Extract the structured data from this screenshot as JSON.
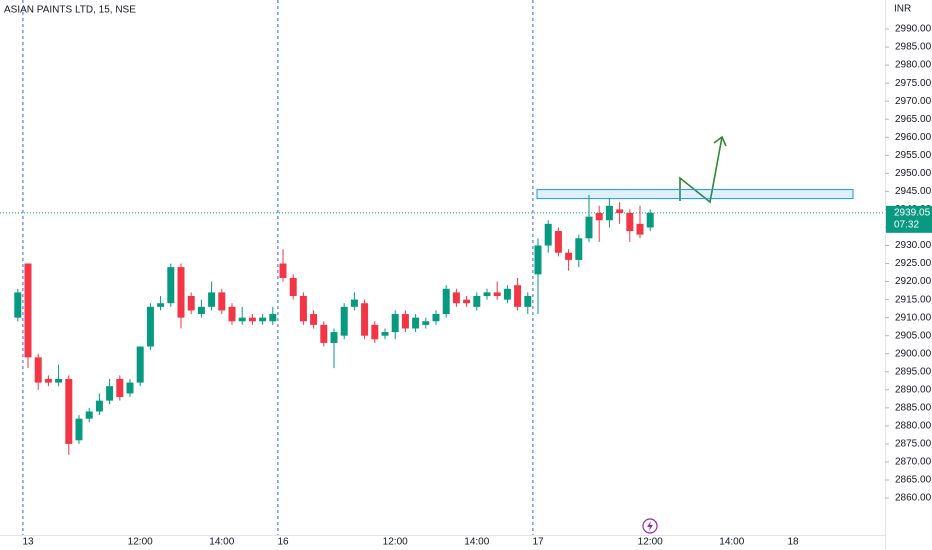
{
  "chart_data": {
    "type": "candlestick",
    "title": "ASIAN PAINTS LTD, 15, NSE",
    "currency": "INR",
    "categories": [
      null,
      "13",
      null,
      null,
      null,
      null,
      null,
      null,
      null,
      null,
      null,
      null,
      "12:00",
      null,
      null,
      null,
      null,
      null,
      null,
      null,
      "14:00",
      null,
      null,
      null,
      null,
      null,
      "16",
      null,
      null,
      null,
      null,
      null,
      null,
      null,
      null,
      null,
      null,
      "12:00",
      null,
      null,
      null,
      null,
      null,
      null,
      null,
      "14:00",
      null,
      null,
      null,
      null,
      null,
      "17",
      null,
      null,
      null,
      null,
      null,
      null,
      null,
      null,
      null,
      null,
      "12:00",
      null,
      null,
      null,
      null,
      null,
      null,
      null,
      "14:00",
      null,
      null,
      null,
      null,
      null,
      "18",
      null,
      null,
      null,
      null,
      null,
      null,
      null
    ],
    "open": [
      2910,
      2925,
      2899,
      2893,
      2892,
      2893,
      2876,
      2882,
      2884,
      2887,
      2893,
      2889,
      2892,
      2902,
      2913,
      2914,
      2924,
      2916,
      2911,
      2913,
      2917,
      2913,
      2909,
      2910,
      2909,
      2909,
      2925,
      2921,
      2916,
      2911,
      2908,
      2903,
      2905,
      2913,
      2914,
      2908,
      2905,
      2906,
      2911,
      2907,
      2908,
      2909,
      2911,
      2917,
      2915,
      2913,
      2916,
      2917,
      2915,
      2919,
      2913,
      2922,
      2930,
      2934,
      2928,
      2926,
      2932,
      2939,
      2937,
      2940,
      2939,
      2936,
      2935,
      null,
      null,
      null,
      null,
      null,
      null,
      null,
      null,
      null,
      null,
      null,
      null,
      null,
      null,
      null,
      null,
      null,
      null,
      null,
      null,
      null
    ],
    "high": [
      2918,
      2925,
      2900,
      2894,
      2897,
      2894,
      2883,
      2885,
      2889,
      2893,
      2894,
      2893,
      2902,
      2914,
      2916,
      2925,
      2925,
      2917,
      2915,
      2920,
      2918,
      2914,
      2913,
      2911,
      2911,
      2913,
      2929,
      2922,
      2917,
      2912,
      2909,
      2907,
      2914,
      2917,
      2915,
      2909,
      2907,
      2912,
      2912,
      2911,
      2910,
      2912,
      2919,
      2918,
      2916,
      2917,
      2918,
      2920,
      2919,
      2921,
      2917,
      2932,
      2937,
      2935,
      2929,
      2933,
      2944,
      2941,
      2943,
      2942,
      2940,
      2941,
      2940,
      null,
      null,
      null,
      null,
      null,
      null,
      null,
      null,
      null,
      null,
      null,
      null,
      null,
      null,
      null,
      null,
      null,
      null,
      null,
      null,
      null
    ],
    "low": [
      2909,
      2896,
      2890,
      2891,
      2891,
      2872,
      2875,
      2881,
      2883,
      2886,
      2887,
      2888,
      2891,
      2901,
      2912,
      2913,
      2907,
      2911,
      2910,
      2912,
      2911,
      2908,
      2908,
      2908,
      2908,
      2908,
      2920,
      2915,
      2908,
      2907,
      2902,
      2896,
      2904,
      2912,
      2904,
      2903,
      2904,
      2904,
      2906,
      2906,
      2907,
      2908,
      2910,
      2913,
      2913,
      2912,
      2915,
      2915,
      2914,
      2912,
      2911,
      2911,
      2928,
      2927,
      2923,
      2924,
      2931,
      2931,
      2935,
      2936,
      2931,
      2932,
      2934,
      null,
      null,
      null,
      null,
      null,
      null,
      null,
      null,
      null,
      null,
      null,
      null,
      null,
      null,
      null,
      null,
      null,
      null,
      null,
      null,
      null
    ],
    "close": [
      2917,
      2899,
      2892,
      2892,
      2893,
      2875,
      2882,
      2884,
      2887,
      2891,
      2888,
      2892,
      2902,
      2913,
      2914,
      2924,
      2910,
      2912,
      2913,
      2917,
      2912,
      2909,
      2910,
      2909,
      2910,
      2911,
      2921,
      2916,
      2909,
      2908,
      2903,
      2906,
      2913,
      2915,
      2905,
      2904,
      2906,
      2911,
      2907,
      2910,
      2909,
      2911,
      2918,
      2914,
      2914,
      2916,
      2917,
      2916,
      2918,
      2913,
      2916,
      2930,
      2936,
      2928,
      2926,
      2932,
      2938,
      2937,
      2941,
      2939,
      2934,
      2933,
      2939.05,
      null,
      null,
      null,
      null,
      null,
      null,
      null,
      null,
      null,
      null,
      null,
      null,
      null,
      null,
      null,
      null,
      null,
      null,
      null,
      null,
      null
    ],
    "up_color": "#089981",
    "down_color": "#f23645",
    "last_price": 2939.05,
    "countdown": "07:32",
    "zone": {
      "low": 2943,
      "high": 2945.5
    },
    "ylim": [
      2849.76,
      2998.04
    ],
    "yticks": [
      {
        "value": 2860,
        "label": "2860.00"
      },
      {
        "value": 2865,
        "label": "2865.00"
      },
      {
        "value": 2870,
        "label": "2870.00"
      },
      {
        "value": 2875,
        "label": "2875.00"
      },
      {
        "value": 2880,
        "label": "2880.00"
      },
      {
        "value": 2885,
        "label": "2885.00"
      },
      {
        "value": 2890,
        "label": "2890.00"
      },
      {
        "value": 2895,
        "label": "2895.00"
      },
      {
        "value": 2900,
        "label": "2900.00"
      },
      {
        "value": 2905,
        "label": "2905.00"
      },
      {
        "value": 2910,
        "label": "2910.00"
      },
      {
        "value": 2915,
        "label": "2915.00"
      },
      {
        "value": 2920,
        "label": "2920.00"
      },
      {
        "value": 2925,
        "label": "2925.00"
      },
      {
        "value": 2930,
        "label": "2930.00"
      },
      {
        "value": 2935,
        "label": "2935.00"
      },
      {
        "value": 2940,
        "label": "2940.00"
      },
      {
        "value": 2945,
        "label": "2945.00"
      },
      {
        "value": 2950,
        "label": "2950.00"
      },
      {
        "value": 2955,
        "label": "2955.00"
      },
      {
        "value": 2960,
        "label": "2960.00"
      },
      {
        "value": 2965,
        "label": "2965.00"
      },
      {
        "value": 2970,
        "label": "2970.00"
      },
      {
        "value": 2975,
        "label": "2975.00"
      },
      {
        "value": 2980,
        "label": "2980.00"
      },
      {
        "value": 2985,
        "label": "2985.00"
      },
      {
        "value": 2990,
        "label": "2990.00"
      }
    ]
  }
}
